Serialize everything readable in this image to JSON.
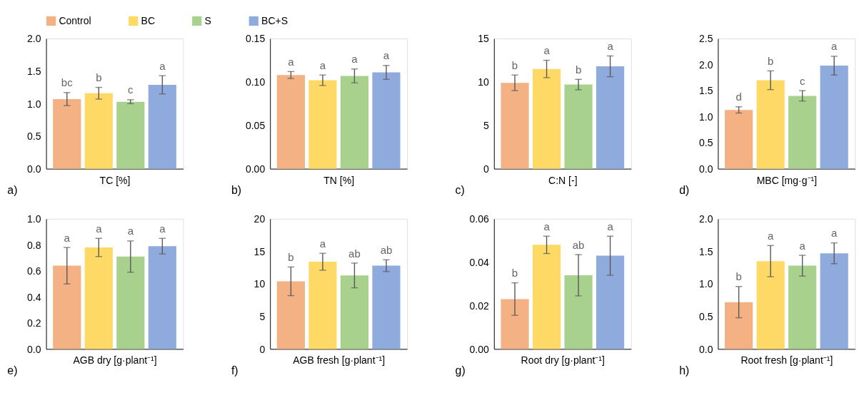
{
  "chart_data": [
    {
      "type": "bar",
      "xlabel": "TC [%]",
      "annotations": [
        "a)"
      ],
      "categories": [
        null
      ],
      "legend": "top",
      "ylim": [
        0,
        2
      ],
      "yticks": [
        {
          "value": 0,
          "label": "0.0"
        },
        0.5,
        {
          "value": 1,
          "label": "1.0"
        },
        1.5,
        {
          "value": 2,
          "label": "2.0"
        }
      ],
      "series": [
        {
          "name": "Control",
          "color": "#f4b183",
          "values": [
            1.07
          ],
          "errors": [
            0.1
          ],
          "value_labels": [
            "bc"
          ]
        },
        {
          "name": "BC",
          "color": "#ffd966",
          "values": [
            1.16
          ],
          "errors": [
            0.09
          ],
          "value_labels": [
            "b"
          ]
        },
        {
          "name": "S",
          "color": "#a9d18e",
          "values": [
            1.03
          ],
          "errors": [
            0.03
          ],
          "value_labels": [
            "c"
          ]
        },
        {
          "name": "BC+S",
          "color": "#8faadc",
          "values": [
            1.29
          ],
          "errors": [
            0.14
          ],
          "value_labels": [
            "a"
          ]
        }
      ]
    },
    {
      "type": "bar",
      "xlabel": "TN [%]",
      "annotations": [
        "b)"
      ],
      "categories": [
        null
      ],
      "ylim": [
        0,
        0.15
      ],
      "yticks": [
        {
          "value": 0,
          "label": "0.00"
        },
        0.05,
        {
          "value": 0.1,
          "label": "0.10"
        },
        0.15
      ],
      "series": [
        {
          "color": "#f4b183",
          "values": [
            0.108
          ],
          "errors": [
            0.004
          ],
          "value_labels": [
            "a"
          ]
        },
        {
          "color": "#ffd966",
          "values": [
            0.102
          ],
          "errors": [
            0.006
          ],
          "value_labels": [
            "a"
          ]
        },
        {
          "color": "#a9d18e",
          "values": [
            0.107
          ],
          "errors": [
            0.008
          ],
          "value_labels": [
            "a"
          ]
        },
        {
          "color": "#8faadc",
          "values": [
            0.111
          ],
          "errors": [
            0.008
          ],
          "value_labels": [
            "a"
          ]
        }
      ]
    },
    {
      "type": "bar",
      "xlabel": "C:N [-]",
      "annotations": [
        "c)"
      ],
      "categories": [
        null
      ],
      "ylim": [
        0,
        15
      ],
      "yticks": [
        0,
        5,
        10,
        15
      ],
      "series": [
        {
          "color": "#f4b183",
          "values": [
            9.9
          ],
          "errors": [
            0.9
          ],
          "value_labels": [
            "b"
          ]
        },
        {
          "color": "#ffd966",
          "values": [
            11.5
          ],
          "errors": [
            1.0
          ],
          "value_labels": [
            "a"
          ]
        },
        {
          "color": "#a9d18e",
          "values": [
            9.7
          ],
          "errors": [
            0.6
          ],
          "value_labels": [
            "b"
          ]
        },
        {
          "color": "#8faadc",
          "values": [
            11.8
          ],
          "errors": [
            1.2
          ],
          "value_labels": [
            "a"
          ]
        }
      ]
    },
    {
      "type": "bar",
      "xlabel": "MBC [mg·g⁻¹]",
      "annotations": [
        "d)"
      ],
      "categories": [
        null
      ],
      "ylim": [
        0,
        2.5
      ],
      "yticks": [
        {
          "value": 0,
          "label": "0.0"
        },
        0.5,
        {
          "value": 1,
          "label": "1.0"
        },
        1.5,
        {
          "value": 2,
          "label": "2.0"
        },
        2.5
      ],
      "series": [
        {
          "color": "#f4b183",
          "values": [
            1.13
          ],
          "errors": [
            0.06
          ],
          "value_labels": [
            "d"
          ]
        },
        {
          "color": "#ffd966",
          "values": [
            1.7
          ],
          "errors": [
            0.18
          ],
          "value_labels": [
            "b"
          ]
        },
        {
          "color": "#a9d18e",
          "values": [
            1.4
          ],
          "errors": [
            0.1
          ],
          "value_labels": [
            "c"
          ]
        },
        {
          "color": "#8faadc",
          "values": [
            1.98
          ],
          "errors": [
            0.18
          ],
          "value_labels": [
            "a"
          ]
        }
      ]
    },
    {
      "type": "bar",
      "xlabel": "AGB dry [g·plant⁻¹]",
      "annotations": [
        "e)"
      ],
      "categories": [
        null
      ],
      "ylim": [
        0,
        1
      ],
      "yticks": [
        {
          "value": 0,
          "label": "0.0"
        },
        0.2,
        0.4,
        0.6,
        0.8,
        {
          "value": 1,
          "label": "1.0"
        }
      ],
      "series": [
        {
          "color": "#f4b183",
          "values": [
            0.64
          ],
          "errors": [
            0.14
          ],
          "value_labels": [
            "a"
          ]
        },
        {
          "color": "#ffd966",
          "values": [
            0.78
          ],
          "errors": [
            0.07
          ],
          "value_labels": [
            "a"
          ]
        },
        {
          "color": "#a9d18e",
          "values": [
            0.71
          ],
          "errors": [
            0.12
          ],
          "value_labels": [
            "a"
          ]
        },
        {
          "color": "#8faadc",
          "values": [
            0.79
          ],
          "errors": [
            0.06
          ],
          "value_labels": [
            "a"
          ]
        }
      ]
    },
    {
      "type": "bar",
      "xlabel": "AGB fresh [g·plant⁻¹]",
      "annotations": [
        "f)"
      ],
      "categories": [
        null
      ],
      "ylim": [
        0,
        20
      ],
      "yticks": [
        0,
        5,
        10,
        15,
        20
      ],
      "series": [
        {
          "color": "#f4b183",
          "values": [
            10.4
          ],
          "errors": [
            2.2
          ],
          "value_labels": [
            "b"
          ]
        },
        {
          "color": "#ffd966",
          "values": [
            13.4
          ],
          "errors": [
            1.3
          ],
          "value_labels": [
            "a"
          ]
        },
        {
          "color": "#a9d18e",
          "values": [
            11.3
          ],
          "errors": [
            1.9
          ],
          "value_labels": [
            "ab"
          ]
        },
        {
          "color": "#8faadc",
          "values": [
            12.8
          ],
          "errors": [
            0.9
          ],
          "value_labels": [
            "ab"
          ]
        }
      ]
    },
    {
      "type": "bar",
      "xlabel": "Root dry [g·plant⁻¹]",
      "annotations": [
        "g)"
      ],
      "categories": [
        null
      ],
      "ylim": [
        0,
        0.06
      ],
      "yticks": [
        {
          "value": 0,
          "label": "0.00"
        },
        0.02,
        0.04,
        0.06
      ],
      "series": [
        {
          "color": "#f4b183",
          "values": [
            0.023
          ],
          "errors": [
            0.0075
          ],
          "value_labels": [
            "b"
          ]
        },
        {
          "color": "#ffd966",
          "values": [
            0.048
          ],
          "errors": [
            0.004
          ],
          "value_labels": [
            "a"
          ]
        },
        {
          "color": "#a9d18e",
          "values": [
            0.034
          ],
          "errors": [
            0.0095
          ],
          "value_labels": [
            "ab"
          ]
        },
        {
          "color": "#8faadc",
          "values": [
            0.043
          ],
          "errors": [
            0.009
          ],
          "value_labels": [
            "a"
          ]
        }
      ]
    },
    {
      "type": "bar",
      "xlabel": "Root fresh [g·plant⁻¹]",
      "annotations": [
        "h)"
      ],
      "categories": [
        null
      ],
      "ylim": [
        0,
        2
      ],
      "yticks": [
        {
          "value": 0,
          "label": "0.0"
        },
        0.5,
        {
          "value": 1,
          "label": "1.0"
        },
        1.5,
        {
          "value": 2,
          "label": "2.0"
        }
      ],
      "series": [
        {
          "color": "#f4b183",
          "values": [
            0.72
          ],
          "errors": [
            0.24
          ],
          "value_labels": [
            "b"
          ]
        },
        {
          "color": "#ffd966",
          "values": [
            1.35
          ],
          "errors": [
            0.24
          ],
          "value_labels": [
            "a"
          ]
        },
        {
          "color": "#a9d18e",
          "values": [
            1.28
          ],
          "errors": [
            0.16
          ],
          "value_labels": [
            "a"
          ]
        },
        {
          "color": "#8faadc",
          "values": [
            1.47
          ],
          "errors": [
            0.16
          ],
          "value_labels": [
            "a"
          ]
        }
      ]
    }
  ]
}
